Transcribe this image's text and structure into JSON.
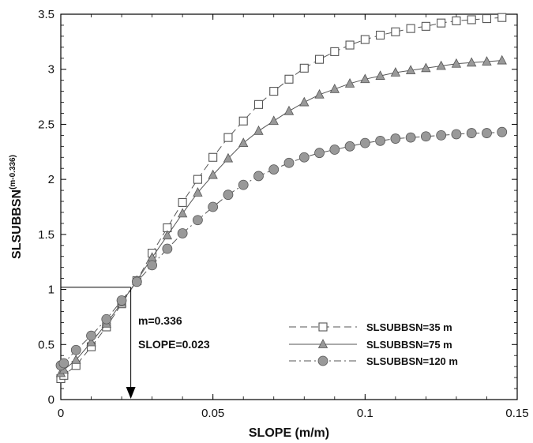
{
  "chart_data": {
    "type": "line",
    "xlabel": "SLOPE (m/m)",
    "ylabel_main": "SLSUBBSN",
    "ylabel_exp": "(m-0.336)",
    "xlim": [
      0,
      0.15
    ],
    "ylim": [
      0,
      3.5
    ],
    "x_ticks": [
      "0",
      "0.05",
      "0.1",
      "0.15"
    ],
    "y_ticks": [
      "0",
      "0.5",
      "1",
      "1.5",
      "2",
      "2.5",
      "3",
      "3.5"
    ],
    "grid": false,
    "legend_position": "bottom-right",
    "series": [
      {
        "name": "SLSUBBSN=35 m",
        "marker": "square-open",
        "line": "dashed",
        "x": [
          0,
          0.001,
          0.005,
          0.01,
          0.015,
          0.02,
          0.025,
          0.03,
          0.035,
          0.04,
          0.045,
          0.05,
          0.055,
          0.06,
          0.065,
          0.07,
          0.075,
          0.08,
          0.085,
          0.09,
          0.095,
          0.1,
          0.105,
          0.11,
          0.115,
          0.12,
          0.125,
          0.13,
          0.135,
          0.14,
          0.145
        ],
        "y": [
          0.19,
          0.22,
          0.31,
          0.48,
          0.66,
          0.87,
          1.08,
          1.33,
          1.56,
          1.79,
          2.0,
          2.2,
          2.38,
          2.53,
          2.68,
          2.8,
          2.91,
          3.01,
          3.09,
          3.16,
          3.22,
          3.27,
          3.31,
          3.34,
          3.37,
          3.39,
          3.42,
          3.44,
          3.45,
          3.46,
          3.47
        ]
      },
      {
        "name": "SLSUBBSN=75 m",
        "marker": "triangle-filled",
        "line": "solid",
        "x": [
          0,
          0.001,
          0.005,
          0.01,
          0.015,
          0.02,
          0.025,
          0.03,
          0.035,
          0.04,
          0.045,
          0.05,
          0.055,
          0.06,
          0.065,
          0.07,
          0.075,
          0.08,
          0.085,
          0.09,
          0.095,
          0.1,
          0.105,
          0.11,
          0.115,
          0.12,
          0.125,
          0.13,
          0.135,
          0.14,
          0.145
        ],
        "y": [
          0.24,
          0.27,
          0.36,
          0.52,
          0.69,
          0.88,
          1.08,
          1.29,
          1.49,
          1.69,
          1.88,
          2.04,
          2.19,
          2.33,
          2.44,
          2.53,
          2.62,
          2.7,
          2.77,
          2.82,
          2.87,
          2.91,
          2.94,
          2.97,
          2.99,
          3.01,
          3.03,
          3.05,
          3.06,
          3.07,
          3.08
        ]
      },
      {
        "name": "SLSUBBSN=120 m",
        "marker": "circle-filled",
        "line": "dash-dot",
        "x": [
          0,
          0.001,
          0.005,
          0.01,
          0.015,
          0.02,
          0.025,
          0.03,
          0.035,
          0.04,
          0.045,
          0.05,
          0.055,
          0.06,
          0.065,
          0.07,
          0.075,
          0.08,
          0.085,
          0.09,
          0.095,
          0.1,
          0.105,
          0.11,
          0.115,
          0.12,
          0.125,
          0.13,
          0.135,
          0.14,
          0.145
        ],
        "y": [
          0.31,
          0.33,
          0.45,
          0.58,
          0.73,
          0.9,
          1.07,
          1.22,
          1.37,
          1.51,
          1.63,
          1.75,
          1.86,
          1.95,
          2.03,
          2.09,
          2.15,
          2.2,
          2.24,
          2.27,
          2.3,
          2.33,
          2.35,
          2.37,
          2.38,
          2.39,
          2.4,
          2.41,
          2.42,
          2.42,
          2.43
        ]
      }
    ],
    "annotation": {
      "point_x": 0.023,
      "point_y": 1.02,
      "text_m": "m=0.336",
      "text_slope": "SLOPE=0.023"
    }
  },
  "colors": {
    "line": "#555555",
    "marker_fill": "#999999",
    "marker_stroke": "#555555",
    "axis": "#000000"
  }
}
